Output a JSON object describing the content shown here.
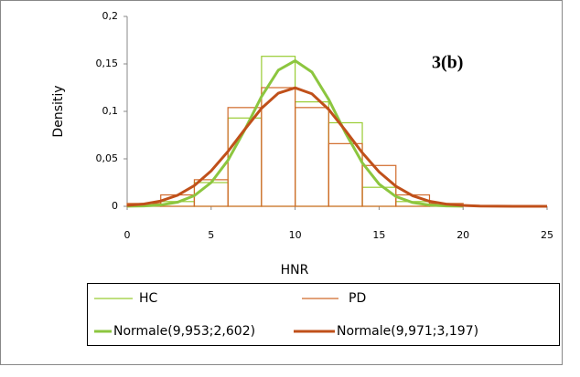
{
  "chart_data": {
    "type": "histogram",
    "annotation": "3(b)",
    "xlabel": "HNR",
    "ylabel": "Densitiy",
    "bins": [
      0,
      2,
      4,
      6,
      8,
      10,
      12,
      14,
      16,
      18,
      20
    ],
    "series": [
      {
        "name": "HC",
        "color": "#99cc33",
        "values": [
          0,
          0.005,
          0.025,
          0.093,
          0.158,
          0.11,
          0.088,
          0.02,
          0.005,
          0
        ]
      },
      {
        "name": "PD",
        "color": "#d06a2a",
        "values": [
          0.003,
          0.012,
          0.028,
          0.104,
          0.125,
          0.104,
          0.066,
          0.043,
          0.012,
          0.003
        ]
      }
    ],
    "curves": [
      {
        "name": "Normale(9,953;2,602)",
        "color": "#8cc63f",
        "x": [
          0,
          1,
          2,
          3,
          4,
          5,
          6,
          7,
          8,
          9,
          10,
          11,
          12,
          13,
          14,
          15,
          16,
          17,
          18,
          19,
          20
        ],
        "values": [
          0.0001,
          0.0004,
          0.0014,
          0.0043,
          0.0112,
          0.025,
          0.0484,
          0.0805,
          0.1156,
          0.1434,
          0.1533,
          0.1414,
          0.1125,
          0.0772,
          0.0458,
          0.0234,
          0.0103,
          0.0039,
          0.0013,
          0.0004,
          0.0001
        ]
      },
      {
        "name": "Normale(9,971;3,197)",
        "color": "#c0501a",
        "x": [
          0,
          1,
          2,
          3,
          4,
          5,
          6,
          7,
          8,
          9,
          10,
          11,
          12,
          13,
          14,
          15,
          16,
          17,
          18,
          19,
          20,
          21,
          22,
          23,
          24,
          25
        ],
        "values": [
          0.001,
          0.0024,
          0.0056,
          0.0116,
          0.0218,
          0.0373,
          0.0577,
          0.081,
          0.1032,
          0.1192,
          0.1248,
          0.1185,
          0.102,
          0.0797,
          0.0564,
          0.0362,
          0.0211,
          0.0111,
          0.0053,
          0.0023,
          0.0009,
          0.0003,
          0.0001,
          0,
          0,
          0
        ]
      }
    ],
    "xlim": [
      0,
      25
    ],
    "xticks": [
      0,
      5,
      10,
      15,
      20,
      25
    ],
    "ylim": [
      0,
      0.2
    ],
    "yticks": [
      0,
      {
        "value": 0.05,
        "label": "0,05"
      },
      {
        "value": 0.1,
        "label": "0,1"
      },
      {
        "value": 0.15,
        "label": "0,15"
      },
      {
        "value": 0.2,
        "label": "0,2"
      }
    ]
  }
}
